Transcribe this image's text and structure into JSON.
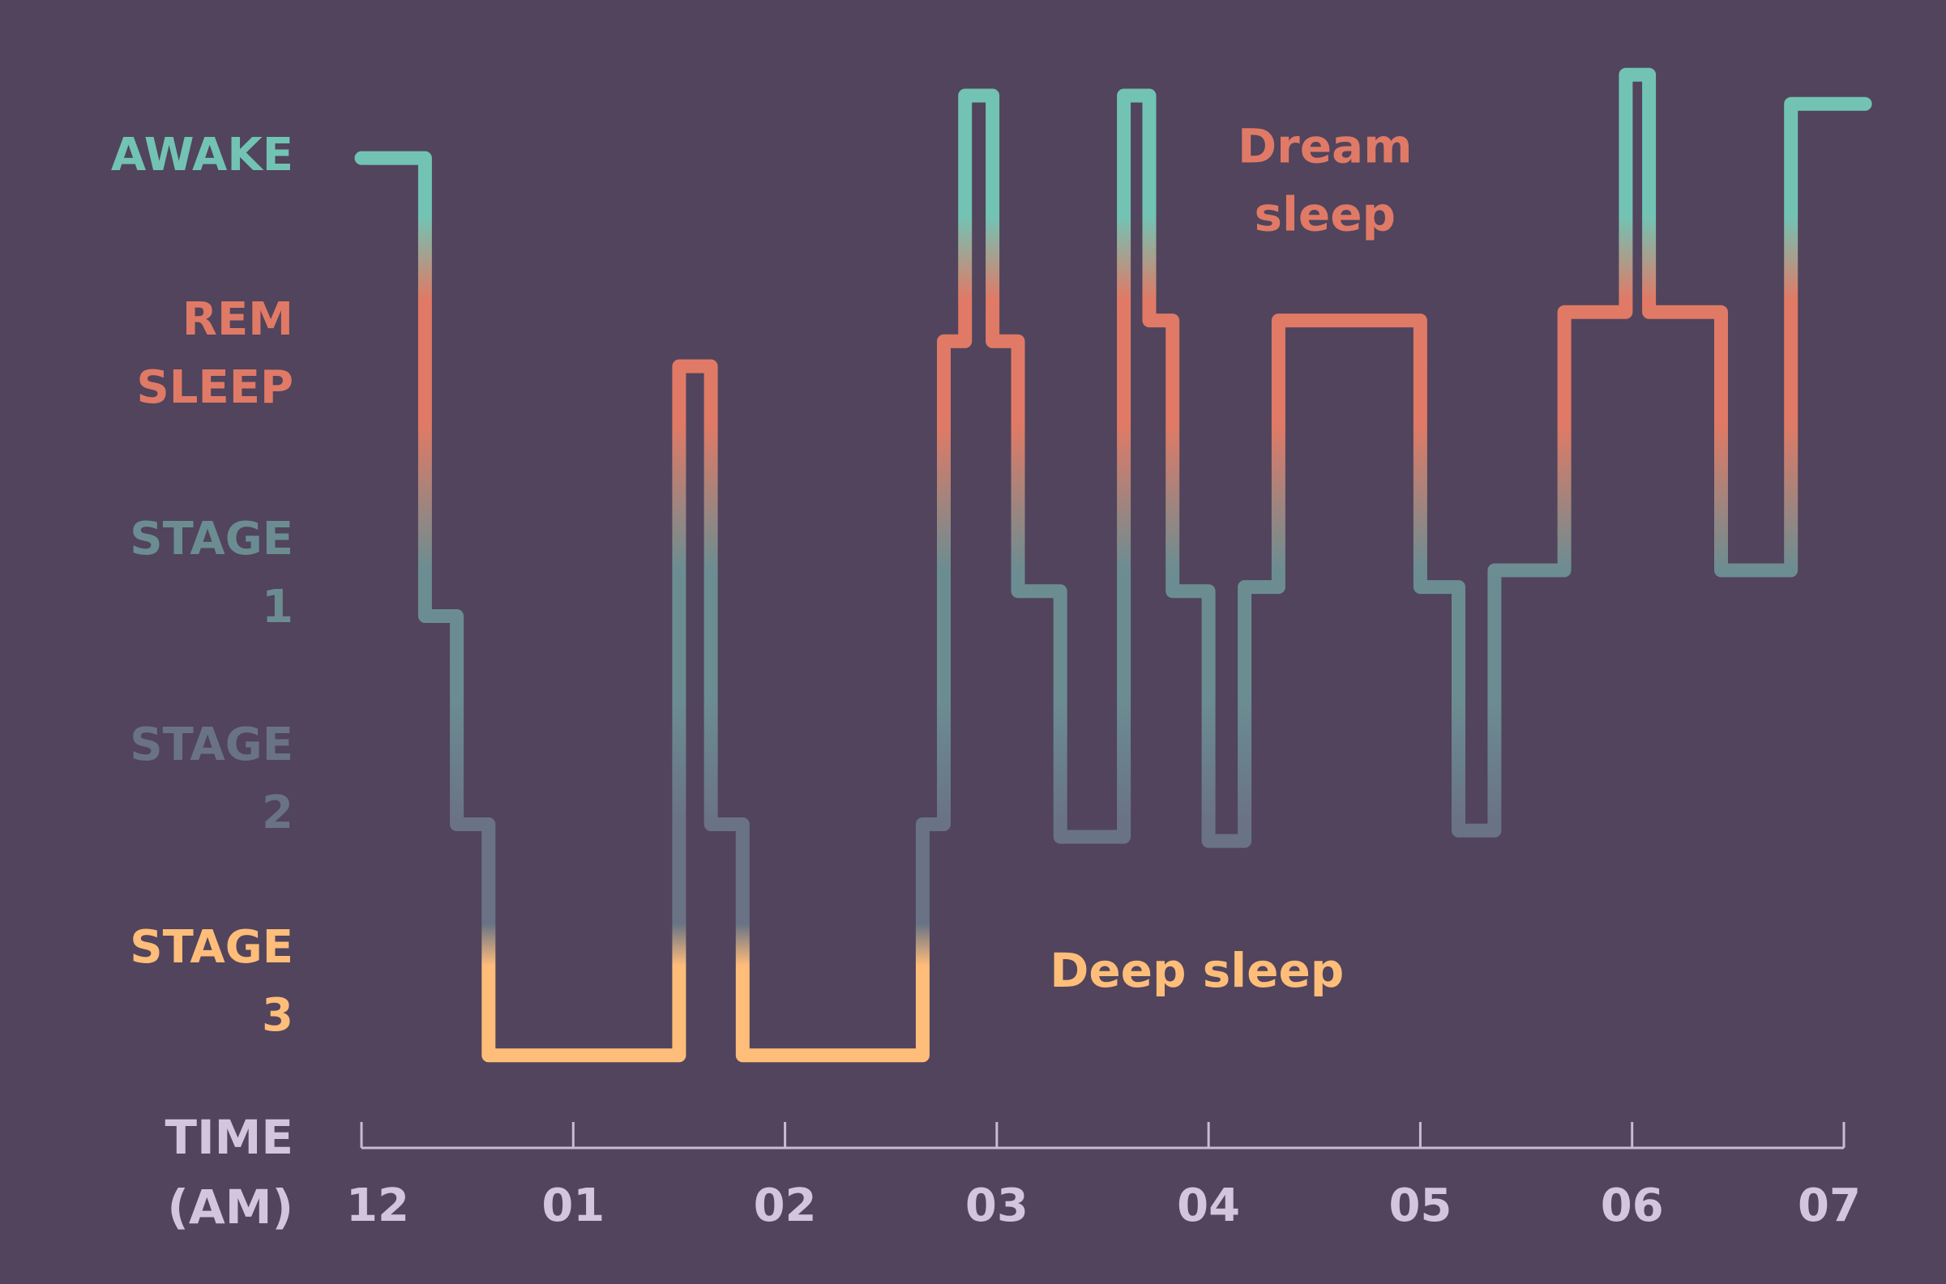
{
  "colors": {
    "background": "#51445c",
    "awake": "#72c3b4",
    "rem": "#e07a66",
    "stage1": "#6b8d92",
    "stage2": "#6a7385",
    "stage3": "#ffbd7a",
    "time": "#d3c5db",
    "axis": "#c9bcd1"
  },
  "chart_data": {
    "type": "line",
    "step": true,
    "stages": [
      {
        "key": "awake",
        "label": "AWAKE"
      },
      {
        "key": "rem",
        "label": "REM SLEEP"
      },
      {
        "key": "stage1",
        "label": "STAGE 1"
      },
      {
        "key": "stage2",
        "label": "STAGE 2"
      },
      {
        "key": "stage3",
        "label": "STAGE 3"
      }
    ],
    "xlabel": "TIME (AM)",
    "xlabel_lines": [
      "TIME",
      "(AM)"
    ],
    "xticks": [
      0,
      1,
      2,
      3,
      4,
      5,
      6,
      7
    ],
    "xtick_labels": [
      "12",
      "01",
      "02",
      "03",
      "04",
      "05",
      "06",
      "07"
    ],
    "xlim": [
      0,
      7
    ],
    "series": [
      {
        "points": [
          [
            0.0,
            0.02
          ],
          [
            0.3,
            0.02
          ],
          [
            0.3,
            2.22
          ],
          [
            0.45,
            2.22
          ],
          [
            0.45,
            3.22
          ],
          [
            0.6,
            3.22
          ],
          [
            0.6,
            4.33
          ],
          [
            1.5,
            4.33
          ],
          [
            1.5,
            1.02
          ],
          [
            1.65,
            1.02
          ],
          [
            1.65,
            3.22
          ],
          [
            1.8,
            3.22
          ],
          [
            1.8,
            4.33
          ],
          [
            2.65,
            4.33
          ],
          [
            2.65,
            3.22
          ],
          [
            2.75,
            3.22
          ],
          [
            2.75,
            0.9
          ],
          [
            2.85,
            0.9
          ],
          [
            2.85,
            -0.28
          ],
          [
            2.98,
            -0.28
          ],
          [
            2.98,
            0.9
          ],
          [
            3.1,
            0.9
          ],
          [
            3.1,
            2.1
          ],
          [
            3.3,
            2.1
          ],
          [
            3.3,
            3.28
          ],
          [
            3.6,
            3.28
          ],
          [
            3.6,
            -0.28
          ],
          [
            3.72,
            -0.28
          ],
          [
            3.72,
            0.8
          ],
          [
            3.83,
            0.8
          ],
          [
            3.83,
            2.1
          ],
          [
            4.0,
            2.1
          ],
          [
            4.0,
            3.3
          ],
          [
            4.17,
            3.3
          ],
          [
            4.17,
            2.08
          ],
          [
            4.33,
            2.08
          ],
          [
            4.33,
            0.8
          ],
          [
            5.0,
            0.8
          ],
          [
            5.0,
            2.08
          ],
          [
            5.18,
            2.08
          ],
          [
            5.18,
            3.25
          ],
          [
            5.35,
            3.25
          ],
          [
            5.35,
            2.0
          ],
          [
            5.68,
            2.0
          ],
          [
            5.68,
            0.76
          ],
          [
            5.97,
            0.76
          ],
          [
            5.97,
            -0.38
          ],
          [
            6.08,
            -0.38
          ],
          [
            6.08,
            0.76
          ],
          [
            6.42,
            0.76
          ],
          [
            6.42,
            2.0
          ],
          [
            6.75,
            2.0
          ],
          [
            6.75,
            -0.24
          ],
          [
            7.1,
            -0.24
          ]
        ]
      }
    ],
    "annotations": [
      {
        "lines": [
          "Dream",
          "sleep"
        ],
        "color_key": "rem",
        "x": 4.55,
        "y": 0.04
      },
      {
        "lines": [
          "Deep sleep"
        ],
        "color_key": "stage3",
        "x": 3.25,
        "y": 4.0
      }
    ]
  }
}
